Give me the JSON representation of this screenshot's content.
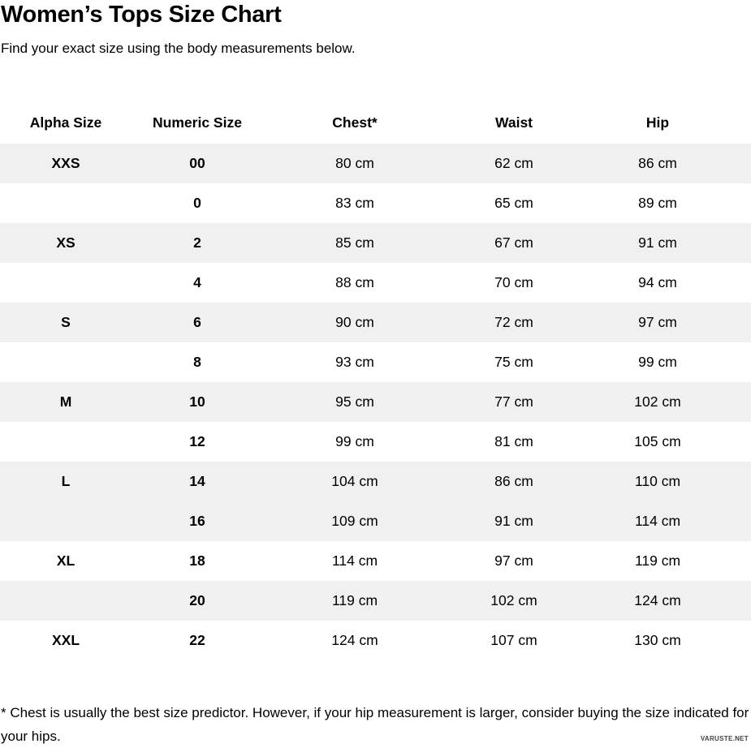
{
  "page": {
    "title": "Women’s Tops Size Chart",
    "subtitle": "Find your exact size using the body measurements below.",
    "footnote": "* Chest is usually the best size predictor. However, if your hip measurement is larger, consider buying the size indicated for your hips.",
    "watermark": "VARUSTE.NET"
  },
  "chart_data": {
    "type": "table",
    "title": "Women’s Tops Size Chart",
    "columns": [
      "Alpha Size",
      "Numeric Size",
      "Chest*",
      "Waist",
      "Hip"
    ],
    "units": "cm",
    "shaded_row_color": "#f0f0f0",
    "rows": [
      {
        "alpha_size": "XXS",
        "numeric_size": "00",
        "chest": "80 cm",
        "waist": "62 cm",
        "hip": "86 cm",
        "shaded": true
      },
      {
        "alpha_size": "",
        "numeric_size": "0",
        "chest": "83 cm",
        "waist": "65 cm",
        "hip": "89 cm",
        "shaded": false
      },
      {
        "alpha_size": "XS",
        "numeric_size": "2",
        "chest": "85 cm",
        "waist": "67 cm",
        "hip": "91 cm",
        "shaded": true
      },
      {
        "alpha_size": "",
        "numeric_size": "4",
        "chest": "88 cm",
        "waist": "70 cm",
        "hip": "94 cm",
        "shaded": false
      },
      {
        "alpha_size": "S",
        "numeric_size": "6",
        "chest": "90 cm",
        "waist": "72 cm",
        "hip": "97 cm",
        "shaded": true
      },
      {
        "alpha_size": "",
        "numeric_size": "8",
        "chest": "93 cm",
        "waist": "75 cm",
        "hip": "99 cm",
        "shaded": false
      },
      {
        "alpha_size": "M",
        "numeric_size": "10",
        "chest": "95 cm",
        "waist": "77 cm",
        "hip": "102 cm",
        "shaded": true
      },
      {
        "alpha_size": "",
        "numeric_size": "12",
        "chest": "99 cm",
        "waist": "81 cm",
        "hip": "105 cm",
        "shaded": false
      },
      {
        "alpha_size": "L",
        "numeric_size": "14",
        "chest": "104 cm",
        "waist": "86 cm",
        "hip": "110 cm",
        "shaded": true
      },
      {
        "alpha_size": "",
        "numeric_size": "16",
        "chest": "109 cm",
        "waist": "91 cm",
        "hip": "114 cm",
        "shaded": true
      },
      {
        "alpha_size": "XL",
        "numeric_size": "18",
        "chest": "114 cm",
        "waist": "97 cm",
        "hip": "119 cm",
        "shaded": false
      },
      {
        "alpha_size": "",
        "numeric_size": "20",
        "chest": "119 cm",
        "waist": "102 cm",
        "hip": "124 cm",
        "shaded": true
      },
      {
        "alpha_size": "XXL",
        "numeric_size": "22",
        "chest": "124 cm",
        "waist": "107 cm",
        "hip": "130 cm",
        "shaded": false
      }
    ]
  }
}
